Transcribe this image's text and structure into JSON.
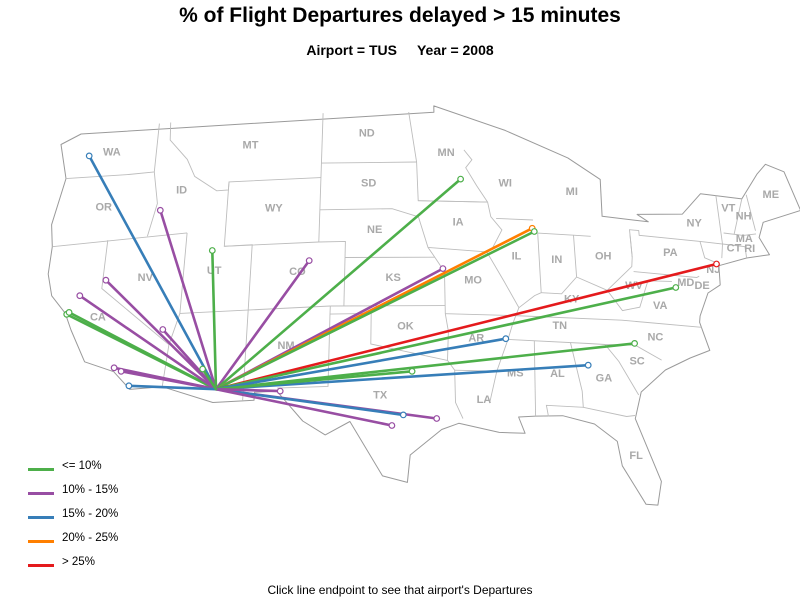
{
  "title": "% of Flight Departures delayed > 15 minutes",
  "subtitle": {
    "airport": "Airport = TUS",
    "year": "Year = 2008"
  },
  "footer": "Click line endpoint to see that airport's Departures",
  "legend": [
    {
      "key": "le10",
      "label": "<= 10%",
      "color": "#4daf4a"
    },
    {
      "key": "10to15",
      "label": "10% - 15%",
      "color": "#984ea3"
    },
    {
      "key": "15to20",
      "label": "15% - 20%",
      "color": "#377eb8"
    },
    {
      "key": "20to25",
      "label": "20% - 25%",
      "color": "#ff7f00"
    },
    {
      "key": "gt25",
      "label": "> 25%",
      "color": "#e41a1c"
    }
  ],
  "origin": {
    "code": "TUS",
    "lon": -110.94,
    "lat": 32.12
  },
  "routes": [
    {
      "lon": -122.31,
      "lat": 47.45,
      "bin": "15to20"
    },
    {
      "lon": -116.22,
      "lat": 43.56,
      "bin": "10to15"
    },
    {
      "lon": -122.38,
      "lat": 37.62,
      "bin": "le10"
    },
    {
      "lon": -122.22,
      "lat": 37.72,
      "bin": "le10"
    },
    {
      "lon": -121.59,
      "lat": 38.7,
      "bin": "10to15"
    },
    {
      "lon": -119.77,
      "lat": 39.5,
      "bin": "10to15"
    },
    {
      "lon": -115.15,
      "lat": 36.08,
      "bin": "10to15"
    },
    {
      "lon": -118.4,
      "lat": 33.94,
      "bin": "10to15"
    },
    {
      "lon": -117.87,
      "lat": 33.68,
      "bin": "10to15"
    },
    {
      "lon": -117.19,
      "lat": 32.73,
      "bin": "15to20"
    },
    {
      "lon": -111.98,
      "lat": 40.79,
      "bin": "le10"
    },
    {
      "lon": -104.67,
      "lat": 39.86,
      "bin": "10to15"
    },
    {
      "lon": -93.22,
      "lat": 44.88,
      "bin": "le10"
    },
    {
      "lon": -94.71,
      "lat": 39.3,
      "bin": "10to15"
    },
    {
      "lon": -87.9,
      "lat": 41.98,
      "bin": "20to25"
    },
    {
      "lon": -87.75,
      "lat": 41.79,
      "bin": "le10"
    },
    {
      "lon": -74.17,
      "lat": 40.69,
      "bin": "gt25"
    },
    {
      "lon": -77.46,
      "lat": 38.94,
      "bin": "le10"
    },
    {
      "lon": -80.94,
      "lat": 35.21,
      "bin": "le10"
    },
    {
      "lon": -84.43,
      "lat": 33.64,
      "bin": "15to20"
    },
    {
      "lon": -90.26,
      "lat": 35.04,
      "bin": "15to20"
    },
    {
      "lon": -97.04,
      "lat": 32.9,
      "bin": "le10"
    },
    {
      "lon": -95.34,
      "lat": 29.98,
      "bin": "10to15"
    },
    {
      "lon": -97.67,
      "lat": 30.19,
      "bin": "15to20"
    },
    {
      "lon": -98.47,
      "lat": 29.53,
      "bin": "10to15"
    },
    {
      "lon": -106.38,
      "lat": 31.81,
      "bin": "10to15"
    },
    {
      "lon": -112.01,
      "lat": 33.43,
      "bin": "le10"
    }
  ],
  "state_labels": [
    {
      "text": "WA",
      "lon": -120.5,
      "lat": 47.3
    },
    {
      "text": "OR",
      "lon": -120.6,
      "lat": 43.9
    },
    {
      "text": "CA",
      "lon": -120.0,
      "lat": 37.0
    },
    {
      "text": "NV",
      "lon": -116.8,
      "lat": 39.2
    },
    {
      "text": "ID",
      "lon": -114.7,
      "lat": 44.5
    },
    {
      "text": "MT",
      "lon": -109.6,
      "lat": 47.0
    },
    {
      "text": "WY",
      "lon": -107.5,
      "lat": 43.0
    },
    {
      "text": "UT",
      "lon": -111.7,
      "lat": 39.3
    },
    {
      "text": "CO",
      "lon": -105.5,
      "lat": 39.0
    },
    {
      "text": "NM",
      "lon": -106.1,
      "lat": 34.4
    },
    {
      "text": "ND",
      "lon": -100.5,
      "lat": 47.5
    },
    {
      "text": "SD",
      "lon": -100.3,
      "lat": 44.4
    },
    {
      "text": "NE",
      "lon": -99.8,
      "lat": 41.5
    },
    {
      "text": "KS",
      "lon": -98.4,
      "lat": 38.5
    },
    {
      "text": "OK",
      "lon": -97.5,
      "lat": 35.5
    },
    {
      "text": "TX",
      "lon": -99.3,
      "lat": 31.2
    },
    {
      "text": "MN",
      "lon": -94.3,
      "lat": 46.3
    },
    {
      "text": "IA",
      "lon": -93.5,
      "lat": 42.0
    },
    {
      "text": "MO",
      "lon": -92.5,
      "lat": 38.4
    },
    {
      "text": "AR",
      "lon": -92.4,
      "lat": 34.8
    },
    {
      "text": "LA",
      "lon": -92.0,
      "lat": 31.0
    },
    {
      "text": "WI",
      "lon": -89.8,
      "lat": 44.5
    },
    {
      "text": "IL",
      "lon": -89.2,
      "lat": 40.0
    },
    {
      "text": "MI",
      "lon": -84.7,
      "lat": 44.2
    },
    {
      "text": "IN",
      "lon": -86.2,
      "lat": 39.9
    },
    {
      "text": "OH",
      "lon": -82.7,
      "lat": 40.3
    },
    {
      "text": "KY",
      "lon": -85.3,
      "lat": 37.5
    },
    {
      "text": "TN",
      "lon": -86.3,
      "lat": 35.8
    },
    {
      "text": "MS",
      "lon": -89.7,
      "lat": 32.7
    },
    {
      "text": "AL",
      "lon": -86.7,
      "lat": 32.8
    },
    {
      "text": "GA",
      "lon": -83.4,
      "lat": 32.7
    },
    {
      "text": "FL",
      "lon": -81.6,
      "lat": 28.0
    },
    {
      "text": "SC",
      "lon": -80.9,
      "lat": 33.9
    },
    {
      "text": "NC",
      "lon": -79.4,
      "lat": 35.5
    },
    {
      "text": "VA",
      "lon": -78.8,
      "lat": 37.5
    },
    {
      "text": "WV",
      "lon": -80.6,
      "lat": 38.6
    },
    {
      "text": "PA",
      "lon": -77.6,
      "lat": 40.9
    },
    {
      "text": "NY",
      "lon": -75.5,
      "lat": 42.9
    },
    {
      "text": "NJ",
      "lon": -74.5,
      "lat": 40.1
    },
    {
      "text": "MD",
      "lon": -76.7,
      "lat": 39.1
    },
    {
      "text": "DE",
      "lon": -75.5,
      "lat": 39.0
    },
    {
      "text": "CT",
      "lon": -72.7,
      "lat": 41.6
    },
    {
      "text": "RI",
      "lon": -71.5,
      "lat": 41.7
    },
    {
      "text": "MA",
      "lon": -71.8,
      "lat": 42.3
    },
    {
      "text": "VT",
      "lon": -72.7,
      "lat": 44.1
    },
    {
      "text": "NH",
      "lon": -71.6,
      "lat": 43.7
    },
    {
      "text": "ME",
      "lon": -69.2,
      "lat": 45.3
    }
  ]
}
